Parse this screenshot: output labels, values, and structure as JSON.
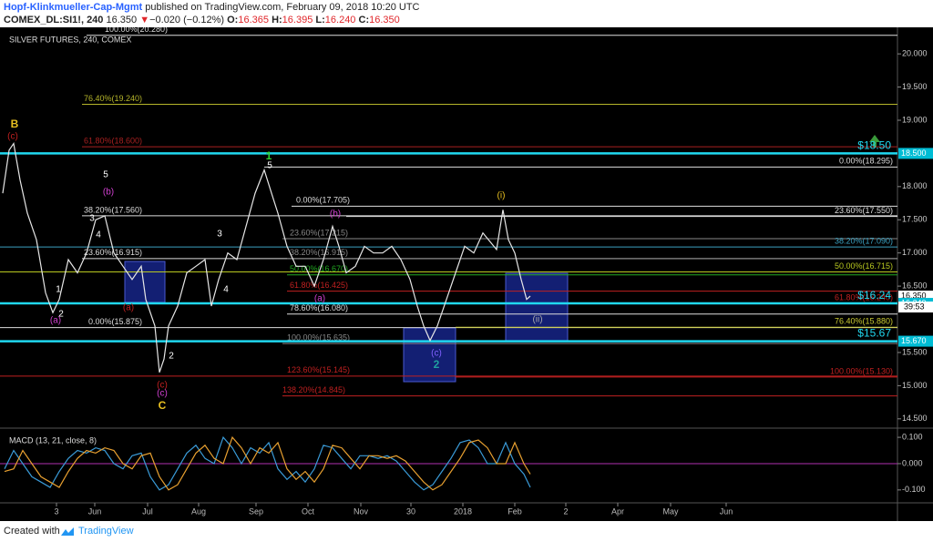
{
  "header": {
    "author": "Hopf-Klinkmueller-Cap-Mgmt",
    "published": "published on TradingView.com, February 09, 2018 10:20 UTC",
    "symbol": "COMEX_DL:SI1!, 240",
    "last": "16.350",
    "arrow": "▼",
    "change": "−0.020 (−0.12%)",
    "o_label": "O:",
    "open": "16.365",
    "h_label": "H:",
    "high": "16.395",
    "l_label": "L:",
    "low": "16.240",
    "c_label": "C:",
    "close": "16.350"
  },
  "footer": {
    "created": "Created with",
    "brand": "TradingView"
  },
  "chart_data": [
    {
      "type": "line",
      "title": "SILVER FUTURES, 240, COMEX",
      "color": "#e6e6e6",
      "x": [
        1.5,
        5,
        7.5,
        11,
        15,
        20,
        25,
        29,
        32.5,
        37.5,
        42.5,
        47.5,
        52.5,
        57.5,
        62.5,
        67.5,
        72.5,
        77.5,
        80,
        85,
        87.5,
        90,
        92.5,
        97.5,
        102.5,
        107.5,
        112.5,
        116,
        120,
        125,
        130,
        135,
        140,
        145,
        149,
        152.5,
        157.5,
        162.5,
        167.5,
        172.5,
        177.5,
        182.5,
        186,
        190,
        195,
        200,
        205,
        210,
        215,
        220,
        225,
        229,
        232.5,
        236,
        240,
        245,
        250,
        255,
        260,
        265,
        272.5,
        276,
        279,
        282.5,
        286,
        289,
        291
      ],
      "values": [
        17.9,
        18.55,
        18.65,
        18.1,
        17.6,
        17.2,
        16.4,
        16.1,
        16.3,
        16.9,
        16.7,
        17.0,
        17.5,
        17.56,
        17.0,
        16.8,
        16.6,
        16.8,
        16.3,
        15.9,
        15.2,
        15.4,
        15.9,
        16.2,
        16.7,
        16.8,
        16.9,
        16.2,
        16.6,
        17.0,
        16.9,
        17.4,
        17.9,
        18.25,
        17.9,
        17.6,
        17.1,
        16.8,
        16.8,
        16.5,
        16.9,
        17.4,
        17.1,
        16.7,
        16.8,
        17.1,
        17.0,
        17.0,
        17.1,
        16.9,
        16.6,
        16.2,
        15.9,
        15.68,
        15.9,
        16.3,
        16.7,
        17.1,
        17.0,
        17.3,
        17.05,
        17.65,
        17.2,
        17.0,
        16.6,
        16.3,
        16.35
      ],
      "xlim": [
        0,
        492.5
      ],
      "xticks": [
        {
          "value": 31,
          "label": "3"
        },
        {
          "value": 52,
          "label": "Jun"
        },
        {
          "value": 81,
          "label": "Jul"
        },
        {
          "value": 109,
          "label": "Aug"
        },
        {
          "value": 140.5,
          "label": "Sep"
        },
        {
          "value": 169,
          "label": "Oct"
        },
        {
          "value": 198,
          "label": "Nov"
        },
        {
          "value": 225.5,
          "label": "30"
        },
        {
          "value": 254,
          "label": "2018"
        },
        {
          "value": 282.5,
          "label": "Feb"
        },
        {
          "value": 310.5,
          "label": "2"
        },
        {
          "value": 339,
          "label": "Apr"
        },
        {
          "value": 368,
          "label": "May"
        },
        {
          "value": 398.5,
          "label": "Jun"
        }
      ],
      "ylim": [
        14.36,
        20.4
      ],
      "yticks": [
        {
          "value": 20,
          "label": "20.000"
        },
        {
          "value": 19.5,
          "label": "19.500"
        },
        {
          "value": 19,
          "label": "19.000"
        },
        {
          "value": 18,
          "label": "18.000"
        },
        {
          "value": 17.5,
          "label": "17.500"
        },
        {
          "value": 17,
          "label": "17.000"
        },
        {
          "value": 16.5,
          "label": "16.500"
        },
        {
          "value": 15.5,
          "label": "15.500"
        },
        {
          "value": 15,
          "label": "15.000"
        },
        {
          "value": 14.5,
          "label": "14.500"
        }
      ],
      "levels": [
        {
          "label": "100.00%(20.280)",
          "value": 20.28,
          "color": "#dddddd"
        },
        {
          "label": "76.40%(19.240)",
          "value": 19.24,
          "color": "#b5b52a"
        },
        {
          "label": "61.80%(18.600)",
          "value": 18.6,
          "color": "#a82020"
        },
        {
          "label": "0.00%(18.295)",
          "value": 18.295,
          "color": "#dddddd"
        },
        {
          "label": "0.00%(17.705)",
          "value": 17.705,
          "color": "#dddddd"
        },
        {
          "label": "38.20%(17.560)",
          "value": 17.56,
          "color": "#dddddd"
        },
        {
          "label": "23.60%(17.550)",
          "value": 17.55,
          "color": "#dddddd"
        },
        {
          "label": "23.60%(17.215)",
          "value": 17.215,
          "color": "#888888"
        },
        {
          "label": "38.20%(17.090)",
          "value": 17.09,
          "color": "#3aa0c0"
        },
        {
          "label": "23.60%(16.915)",
          "value": 16.915,
          "color": "#dddddd"
        },
        {
          "label": "38.20%(16.915)",
          "value": 16.915,
          "color": "#888888"
        },
        {
          "label": "50.00%(16.715)",
          "value": 16.715,
          "color": "#b8c820"
        },
        {
          "label": "50.00%(16.670)",
          "value": 16.67,
          "color": "#22aa22"
        },
        {
          "label": "61.80%(16.425)",
          "value": 16.425,
          "color": "#c02020"
        },
        {
          "label": "61.80%(16.240)",
          "value": 16.24,
          "color": "#c02020"
        },
        {
          "label": "78.60%(16.080)",
          "value": 16.08,
          "color": "#dddddd"
        },
        {
          "label": "0.00%(15.875)",
          "value": 15.875,
          "color": "#dddddd"
        },
        {
          "label": "76.40%(15.880)",
          "value": 15.88,
          "color": "#cccc33"
        },
        {
          "label": "100.00%(15.635)",
          "value": 15.635,
          "color": "#888888"
        },
        {
          "label": "123.60%(15.145)",
          "value": 15.145,
          "color": "#c02020"
        },
        {
          "label": "100.00%(15.130)",
          "value": 15.13,
          "color": "#c02020"
        },
        {
          "label": "138.20%(14.845)",
          "value": 14.845,
          "color": "#c02020"
        }
      ],
      "support": [
        {
          "label": "$18.50",
          "value": 18.5
        },
        {
          "label": "$16.24",
          "value": 16.24
        },
        {
          "label": "$15.67",
          "value": 15.67
        }
      ],
      "support_color": "#20d8f0",
      "tags": [
        {
          "label": "18.500",
          "value": 18.5,
          "color": "#00bcd4"
        },
        {
          "label": "16.350",
          "value": 16.35,
          "color": "#ffffff"
        },
        {
          "label": "16.240",
          "value": 16.24,
          "color": "#00bcd4"
        },
        {
          "label": "15.670",
          "value": 15.67,
          "color": "#00bcd4"
        }
      ],
      "countdown": "39:53",
      "annotations": [
        {
          "text": "B",
          "color": "#e8c020"
        },
        {
          "text": "(c)",
          "color": "#c02020"
        },
        {
          "text": "(b)",
          "color": "#d040d0"
        },
        {
          "text": "5",
          "color": "#ffffff"
        },
        {
          "text": "3",
          "color": "#ffffff"
        },
        {
          "text": "4",
          "color": "#ffffff"
        },
        {
          "text": "1",
          "color": "#ffffff"
        },
        {
          "text": "2",
          "color": "#ffffff"
        },
        {
          "text": "(a)",
          "color": "#d040d0"
        },
        {
          "text": "(a)",
          "color": "#c02020"
        },
        {
          "text": "(c)",
          "color": "#c02020"
        },
        {
          "text": "(c)",
          "color": "#d040d0"
        },
        {
          "text": "C",
          "color": "#e8c020"
        },
        {
          "text": "2",
          "color": "#ffffff"
        },
        {
          "text": "3",
          "color": "#ffffff"
        },
        {
          "text": "4",
          "color": "#ffffff"
        },
        {
          "text": "1",
          "color": "#30d030"
        },
        {
          "text": "5",
          "color": "#ffffff"
        },
        {
          "text": "(b)",
          "color": "#d040d0"
        },
        {
          "text": "(a)",
          "color": "#d040d0"
        },
        {
          "text": "(i)",
          "color": "#e8c020"
        },
        {
          "text": "(ii)",
          "color": "#aaaaaa"
        },
        {
          "text": "(c)",
          "color": "#8060ff"
        },
        {
          "text": "2",
          "color": "#20a0a0"
        }
      ]
    },
    {
      "type": "line",
      "title": "MACD (13, 21, close, 8)",
      "x": [
        2.5,
        7.5,
        12.5,
        17.5,
        22.5,
        27.5,
        32.5,
        37.5,
        42.5,
        47.5,
        52.5,
        57.5,
        62.5,
        67.5,
        72.5,
        77.5,
        82.5,
        87.5,
        92.5,
        97.5,
        102.5,
        107.5,
        112.5,
        117.5,
        122.5,
        127.5,
        132.5,
        137.5,
        142.5,
        147.5,
        152.5,
        157.5,
        162.5,
        167.5,
        172.5,
        177.5,
        182.5,
        187.5,
        192.5,
        197.5,
        202.5,
        207.5,
        212.5,
        217.5,
        222.5,
        227.5,
        232.5,
        237.5,
        242.5,
        247.5,
        252.5,
        257.5,
        262.5,
        267.5,
        272.5,
        277.5,
        282.5,
        287.5,
        291
      ],
      "series": [
        {
          "color": "#3a9bd8",
          "values": [
            -0.02,
            0.05,
            0.0,
            -0.05,
            -0.07,
            -0.09,
            -0.03,
            0.02,
            0.05,
            0.04,
            0.06,
            0.05,
            0.0,
            -0.02,
            0.03,
            0.04,
            -0.05,
            -0.1,
            -0.08,
            -0.02,
            0.04,
            0.07,
            0.02,
            0.0,
            0.1,
            0.06,
            0.0,
            0.06,
            0.04,
            0.08,
            -0.02,
            -0.06,
            -0.03,
            -0.07,
            -0.02,
            0.07,
            0.06,
            0.02,
            -0.02,
            0.03,
            0.03,
            0.02,
            0.03,
            0.01,
            -0.03,
            -0.07,
            -0.1,
            -0.08,
            -0.03,
            0.02,
            0.08,
            0.09,
            0.06,
            0.0,
            0.0,
            0.08,
            0.0,
            -0.04,
            -0.09
          ]
        },
        {
          "color": "#e8a030",
          "values": [
            -0.03,
            -0.02,
            0.05,
            0.0,
            -0.05,
            -0.07,
            -0.09,
            -0.03,
            0.02,
            0.05,
            0.04,
            0.06,
            0.05,
            0.0,
            -0.02,
            0.03,
            0.04,
            -0.05,
            -0.1,
            -0.08,
            -0.02,
            0.04,
            0.07,
            0.02,
            0.0,
            0.1,
            0.06,
            0.0,
            0.06,
            0.04,
            0.08,
            -0.02,
            -0.06,
            -0.03,
            -0.07,
            -0.02,
            0.07,
            0.06,
            0.02,
            -0.02,
            0.03,
            0.03,
            0.02,
            0.03,
            0.01,
            -0.03,
            -0.07,
            -0.1,
            -0.08,
            -0.03,
            0.02,
            0.08,
            0.09,
            0.06,
            0.0,
            0.0,
            0.08,
            0.0,
            -0.04
          ]
        }
      ],
      "xlim": [
        0,
        492.5
      ],
      "ylim": [
        -0.149,
        0.128
      ],
      "yticks": [
        {
          "value": 0.1,
          "label": "0.100"
        },
        {
          "value": 0,
          "label": "0.000"
        },
        {
          "value": -0.1,
          "label": "-0.100"
        }
      ],
      "zero_color": "#b030b0"
    }
  ]
}
